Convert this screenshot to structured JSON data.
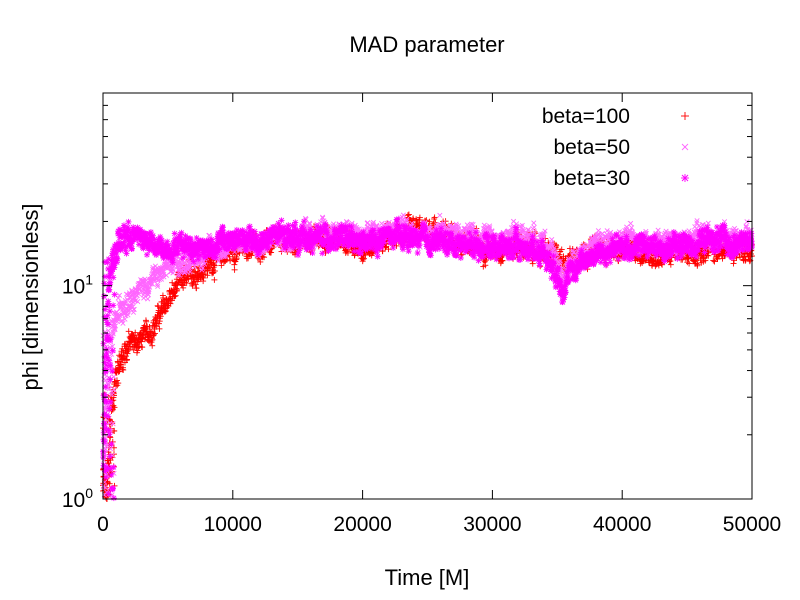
{
  "chart_data": {
    "type": "scatter",
    "title": "MAD parameter",
    "xlabel": "Time [M]",
    "ylabel": "phi [dimensionless]",
    "xlim": [
      0,
      50000
    ],
    "ylim": [
      1,
      80
    ],
    "yscale": "log",
    "grid": false,
    "legend_position": "top-right",
    "x_ticks": [
      0,
      10000,
      20000,
      30000,
      40000,
      50000
    ],
    "x_tick_labels": [
      "0",
      "10000",
      "20000",
      "30000",
      "40000",
      "50000"
    ],
    "y_ticks": [
      {
        "value": 1,
        "base": "10",
        "exp": "0"
      },
      {
        "value": 10,
        "base": "10",
        "exp": "1"
      }
    ],
    "series": [
      {
        "name": "beta=100",
        "marker": "+",
        "color": "#ff0000",
        "x": [
          0,
          300,
          600,
          1000,
          1500,
          2000,
          3000,
          4000,
          5000,
          6000,
          7000,
          8000,
          9000,
          10000,
          12000,
          14000,
          16000,
          18000,
          20000,
          22000,
          24000,
          26000,
          28000,
          30000,
          32000,
          34000,
          35500,
          37000,
          39000,
          41000,
          43000,
          45000,
          47000,
          49000,
          50000
        ],
        "y": [
          1.2,
          1.0,
          2.4,
          3.8,
          4.7,
          5.3,
          5.6,
          6.6,
          8.5,
          10.2,
          11.5,
          12.5,
          13.5,
          14.5,
          15.5,
          16.0,
          16.5,
          17.0,
          15.0,
          16.5,
          18.0,
          17.5,
          16.0,
          15.0,
          15.5,
          14.5,
          13.0,
          14.5,
          15.0,
          14.5,
          14.0,
          14.5,
          14.5,
          15.0,
          14.5
        ]
      },
      {
        "name": "beta=50",
        "marker": "x",
        "color": "#ff66ff",
        "x": [
          0,
          300,
          600,
          1000,
          1500,
          2000,
          3000,
          4000,
          5000,
          6000,
          7000,
          8000,
          9000,
          10000,
          12000,
          14000,
          16000,
          18000,
          20000,
          22000,
          24000,
          26000,
          28000,
          30000,
          32000,
          34000,
          35500,
          37000,
          39000,
          41000,
          43000,
          45000,
          47000,
          49000,
          50000
        ],
        "y": [
          1.5,
          2.5,
          5.5,
          7.0,
          8.0,
          9.0,
          9.8,
          10.8,
          12.0,
          13.0,
          13.5,
          14.5,
          15.0,
          15.5,
          16.5,
          17.0,
          17.0,
          18.0,
          17.0,
          18.0,
          17.5,
          18.0,
          17.0,
          17.0,
          17.0,
          16.0,
          11.0,
          15.0,
          16.0,
          16.5,
          16.0,
          17.0,
          17.5,
          16.0,
          17.0
        ]
      },
      {
        "name": "beta=30",
        "marker": "*",
        "color": "#ff00ff",
        "x": [
          0,
          200,
          400,
          700,
          1000,
          1500,
          2000,
          3000,
          4000,
          5000,
          6000,
          7000,
          8000,
          9000,
          10000,
          12000,
          14000,
          16000,
          18000,
          20000,
          22000,
          24000,
          26000,
          28000,
          30000,
          32000,
          34000,
          35500,
          37000,
          39000,
          41000,
          43000,
          45000,
          47000,
          49000,
          50000
        ],
        "y": [
          1.5,
          4.0,
          9.0,
          12.5,
          15.0,
          16.5,
          17.0,
          17.0,
          15.0,
          15.0,
          16.0,
          15.5,
          15.0,
          16.0,
          16.5,
          16.0,
          17.5,
          16.5,
          17.0,
          15.5,
          17.0,
          16.5,
          16.0,
          15.5,
          15.5,
          15.0,
          14.5,
          10.0,
          13.5,
          14.5,
          15.5,
          15.0,
          15.5,
          16.5,
          15.5,
          16.0
        ]
      }
    ]
  }
}
